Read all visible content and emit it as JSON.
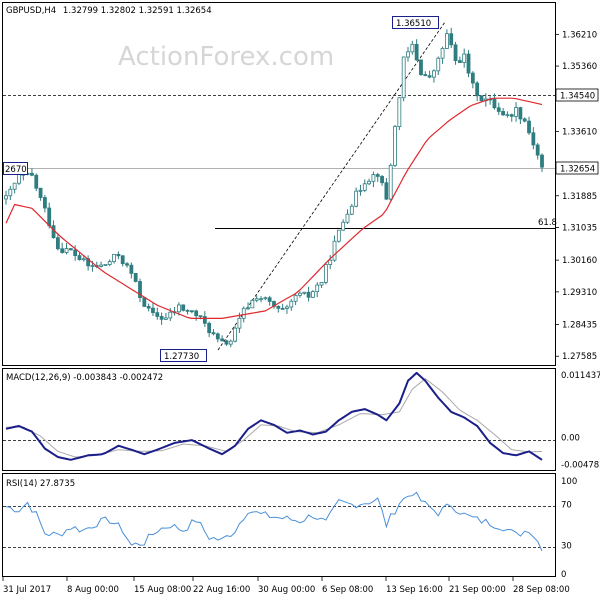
{
  "header": {
    "symbol": "GBPUSD,H4",
    "ohlc": "1.32799 1.32802 1.32591 1.32654"
  },
  "watermark": "ActionForex.com",
  "colors": {
    "background": "#ffffff",
    "candle": "#2e7d80",
    "ma": "#e0282e",
    "macd_line": "#1b1f8a",
    "macd_signal": "#aaaaaa",
    "rsi": "#4a90d9"
  },
  "chart_data": [
    {
      "type": "candlestick",
      "title": "GBPUSD,H4",
      "ylim": [
        1.2735,
        1.3705
      ],
      "y_ticks": [
        "1.36210",
        "1.35360",
        "1.34540",
        "1.33610",
        "1.32654",
        "1.31885",
        "1.31035",
        "1.30160",
        "1.29310",
        "1.28435",
        "1.27585"
      ],
      "x_ticks": [
        "31 Jul 2017",
        "8 Aug 00:00",
        "15 Aug 08:00",
        "22 Aug 16:00",
        "30 Aug 00:00",
        "6 Sep 08:00",
        "13 Sep 16:00",
        "21 Sep 00:00",
        "28 Sep 08:00"
      ],
      "annotations": {
        "high_label": "1.36510",
        "low_label": "1.27730",
        "left_label": "2670",
        "resistance_label": "1.34540",
        "current_label": "1.32654",
        "fib_label": "61.8"
      },
      "levels": {
        "resistance": 1.3454,
        "current": 1.32654,
        "fib_61_8": 1.3118,
        "left_high": 1.3267,
        "swing_low": 1.2773,
        "swing_high": 1.3651
      },
      "moving_average_anchors": [
        {
          "t": 0,
          "v": 1.3115
        },
        {
          "t": 4,
          "v": 1.3165
        },
        {
          "t": 12,
          "v": 1.3155
        },
        {
          "t": 25,
          "v": 1.308
        },
        {
          "t": 45,
          "v": 1.2985
        },
        {
          "t": 70,
          "v": 1.2895
        },
        {
          "t": 85,
          "v": 1.286
        },
        {
          "t": 100,
          "v": 1.286
        },
        {
          "t": 120,
          "v": 1.288
        },
        {
          "t": 135,
          "v": 1.293
        },
        {
          "t": 150,
          "v": 1.302
        },
        {
          "t": 165,
          "v": 1.31
        },
        {
          "t": 175,
          "v": 1.314
        },
        {
          "t": 185,
          "v": 1.325
        },
        {
          "t": 195,
          "v": 1.334
        },
        {
          "t": 205,
          "v": 1.339
        },
        {
          "t": 215,
          "v": 1.343
        },
        {
          "t": 225,
          "v": 1.345
        },
        {
          "t": 235,
          "v": 1.345
        },
        {
          "t": 250,
          "v": 1.343
        }
      ],
      "price_anchors": [
        {
          "t": 0,
          "v": 1.318
        },
        {
          "t": 6,
          "v": 1.324
        },
        {
          "t": 12,
          "v": 1.324
        },
        {
          "t": 18,
          "v": 1.315
        },
        {
          "t": 24,
          "v": 1.305
        },
        {
          "t": 30,
          "v": 1.304
        },
        {
          "t": 38,
          "v": 1.3
        },
        {
          "t": 45,
          "v": 1.3
        },
        {
          "t": 52,
          "v": 1.303
        },
        {
          "t": 58,
          "v": 1.298
        },
        {
          "t": 62,
          "v": 1.292
        },
        {
          "t": 67,
          "v": 1.287
        },
        {
          "t": 74,
          "v": 1.286
        },
        {
          "t": 80,
          "v": 1.289
        },
        {
          "t": 88,
          "v": 1.287
        },
        {
          "t": 94,
          "v": 1.283
        },
        {
          "t": 99,
          "v": 1.279
        },
        {
          "t": 104,
          "v": 1.28
        },
        {
          "t": 110,
          "v": 1.288
        },
        {
          "t": 116,
          "v": 1.292
        },
        {
          "t": 121,
          "v": 1.2905
        },
        {
          "t": 126,
          "v": 1.288
        },
        {
          "t": 130,
          "v": 1.288
        },
        {
          "t": 134,
          "v": 1.292
        },
        {
          "t": 140,
          "v": 1.292
        },
        {
          "t": 146,
          "v": 1.296
        },
        {
          "t": 152,
          "v": 1.306
        },
        {
          "t": 158,
          "v": 1.315
        },
        {
          "t": 163,
          "v": 1.32
        },
        {
          "t": 166,
          "v": 1.323
        },
        {
          "t": 172,
          "v": 1.325
        },
        {
          "t": 176,
          "v": 1.318
        },
        {
          "t": 180,
          "v": 1.337
        },
        {
          "t": 184,
          "v": 1.355
        },
        {
          "t": 188,
          "v": 1.359
        },
        {
          "t": 192,
          "v": 1.352
        },
        {
          "t": 196,
          "v": 1.35
        },
        {
          "t": 200,
          "v": 1.355
        },
        {
          "t": 204,
          "v": 1.362
        },
        {
          "t": 208,
          "v": 1.355
        },
        {
          "t": 212,
          "v": 1.356
        },
        {
          "t": 216,
          "v": 1.348
        },
        {
          "t": 220,
          "v": 1.345
        },
        {
          "t": 224,
          "v": 1.344
        },
        {
          "t": 228,
          "v": 1.342
        },
        {
          "t": 232,
          "v": 1.34
        },
        {
          "t": 236,
          "v": 1.342
        },
        {
          "t": 240,
          "v": 1.339
        },
        {
          "t": 244,
          "v": 1.333
        },
        {
          "t": 248,
          "v": 1.3265
        }
      ]
    },
    {
      "type": "line",
      "title": "MACD(12,26,9) -0.003843 -0.002472",
      "ylim": [
        -0.0058,
        0.0121
      ],
      "y_ticks": [
        "0.011437",
        "0.00",
        "-0.004782"
      ],
      "series": [
        {
          "role": "macd",
          "anchors": [
            {
              "t": 0,
              "v": 0.0015
            },
            {
              "t": 6,
              "v": 0.002
            },
            {
              "t": 12,
              "v": 0.001
            },
            {
              "t": 18,
              "v": -0.002
            },
            {
              "t": 24,
              "v": -0.0035
            },
            {
              "t": 30,
              "v": -0.004
            },
            {
              "t": 38,
              "v": -0.0032
            },
            {
              "t": 45,
              "v": -0.003
            },
            {
              "t": 52,
              "v": -0.0015
            },
            {
              "t": 58,
              "v": -0.0022
            },
            {
              "t": 64,
              "v": -0.003
            },
            {
              "t": 70,
              "v": -0.0022
            },
            {
              "t": 78,
              "v": -0.001
            },
            {
              "t": 86,
              "v": -0.0005
            },
            {
              "t": 94,
              "v": -0.002
            },
            {
              "t": 100,
              "v": -0.003
            },
            {
              "t": 106,
              "v": -0.0015
            },
            {
              "t": 112,
              "v": 0.0015
            },
            {
              "t": 118,
              "v": 0.003
            },
            {
              "t": 124,
              "v": 0.0022
            },
            {
              "t": 130,
              "v": 0.0008
            },
            {
              "t": 136,
              "v": 0.0012
            },
            {
              "t": 142,
              "v": 0.0005
            },
            {
              "t": 148,
              "v": 0.001
            },
            {
              "t": 154,
              "v": 0.003
            },
            {
              "t": 160,
              "v": 0.0045
            },
            {
              "t": 166,
              "v": 0.005
            },
            {
              "t": 172,
              "v": 0.004
            },
            {
              "t": 176,
              "v": 0.003
            },
            {
              "t": 182,
              "v": 0.006
            },
            {
              "t": 186,
              "v": 0.01
            },
            {
              "t": 190,
              "v": 0.0114
            },
            {
              "t": 194,
              "v": 0.01
            },
            {
              "t": 200,
              "v": 0.007
            },
            {
              "t": 206,
              "v": 0.0045
            },
            {
              "t": 212,
              "v": 0.0035
            },
            {
              "t": 218,
              "v": 0.002
            },
            {
              "t": 224,
              "v": -0.001
            },
            {
              "t": 230,
              "v": -0.0028
            },
            {
              "t": 236,
              "v": -0.0032
            },
            {
              "t": 242,
              "v": -0.0025
            },
            {
              "t": 248,
              "v": -0.004
            }
          ]
        },
        {
          "role": "signal",
          "anchors": [
            {
              "t": 0,
              "v": 0.0018
            },
            {
              "t": 8,
              "v": 0.0018
            },
            {
              "t": 16,
              "v": 0.0002
            },
            {
              "t": 24,
              "v": -0.0025
            },
            {
              "t": 32,
              "v": -0.0035
            },
            {
              "t": 42,
              "v": -0.0032
            },
            {
              "t": 52,
              "v": -0.0022
            },
            {
              "t": 62,
              "v": -0.0025
            },
            {
              "t": 72,
              "v": -0.0024
            },
            {
              "t": 82,
              "v": -0.0012
            },
            {
              "t": 92,
              "v": -0.0015
            },
            {
              "t": 102,
              "v": -0.0025
            },
            {
              "t": 110,
              "v": -0.0005
            },
            {
              "t": 118,
              "v": 0.0022
            },
            {
              "t": 126,
              "v": 0.002
            },
            {
              "t": 134,
              "v": 0.001
            },
            {
              "t": 144,
              "v": 0.0008
            },
            {
              "t": 154,
              "v": 0.0022
            },
            {
              "t": 164,
              "v": 0.0042
            },
            {
              "t": 174,
              "v": 0.004
            },
            {
              "t": 182,
              "v": 0.0045
            },
            {
              "t": 188,
              "v": 0.0085
            },
            {
              "t": 194,
              "v": 0.0104
            },
            {
              "t": 202,
              "v": 0.008
            },
            {
              "t": 210,
              "v": 0.0048
            },
            {
              "t": 218,
              "v": 0.003
            },
            {
              "t": 226,
              "v": 0.0005
            },
            {
              "t": 234,
              "v": -0.0022
            },
            {
              "t": 242,
              "v": -0.0026
            },
            {
              "t": 248,
              "v": -0.0025
            }
          ]
        }
      ]
    },
    {
      "type": "line",
      "title": "RSI(14) 27.8735",
      "ylim": [
        0,
        100
      ],
      "y_ticks": [
        "100",
        "70",
        "30",
        "0"
      ],
      "levels": [
        70,
        30
      ],
      "series": [
        {
          "role": "rsi",
          "anchors": [
            {
              "t": 0,
              "v": 68
            },
            {
              "t": 6,
              "v": 65
            },
            {
              "t": 10,
              "v": 72
            },
            {
              "t": 14,
              "v": 60
            },
            {
              "t": 18,
              "v": 42
            },
            {
              "t": 24,
              "v": 40
            },
            {
              "t": 30,
              "v": 48
            },
            {
              "t": 36,
              "v": 45
            },
            {
              "t": 42,
              "v": 52
            },
            {
              "t": 48,
              "v": 55
            },
            {
              "t": 54,
              "v": 45
            },
            {
              "t": 58,
              "v": 30
            },
            {
              "t": 64,
              "v": 33
            },
            {
              "t": 70,
              "v": 45
            },
            {
              "t": 76,
              "v": 50
            },
            {
              "t": 82,
              "v": 45
            },
            {
              "t": 88,
              "v": 55
            },
            {
              "t": 94,
              "v": 38
            },
            {
              "t": 100,
              "v": 35
            },
            {
              "t": 106,
              "v": 45
            },
            {
              "t": 112,
              "v": 65
            },
            {
              "t": 118,
              "v": 60
            },
            {
              "t": 124,
              "v": 58
            },
            {
              "t": 130,
              "v": 56
            },
            {
              "t": 136,
              "v": 54
            },
            {
              "t": 142,
              "v": 60
            },
            {
              "t": 148,
              "v": 52
            },
            {
              "t": 154,
              "v": 72
            },
            {
              "t": 160,
              "v": 70
            },
            {
              "t": 166,
              "v": 72
            },
            {
              "t": 172,
              "v": 75
            },
            {
              "t": 176,
              "v": 50
            },
            {
              "t": 182,
              "v": 72
            },
            {
              "t": 188,
              "v": 82
            },
            {
              "t": 194,
              "v": 70
            },
            {
              "t": 200,
              "v": 62
            },
            {
              "t": 206,
              "v": 70
            },
            {
              "t": 212,
              "v": 60
            },
            {
              "t": 218,
              "v": 55
            },
            {
              "t": 224,
              "v": 52
            },
            {
              "t": 230,
              "v": 48
            },
            {
              "t": 236,
              "v": 40
            },
            {
              "t": 242,
              "v": 46
            },
            {
              "t": 248,
              "v": 28
            }
          ]
        }
      ]
    }
  ]
}
